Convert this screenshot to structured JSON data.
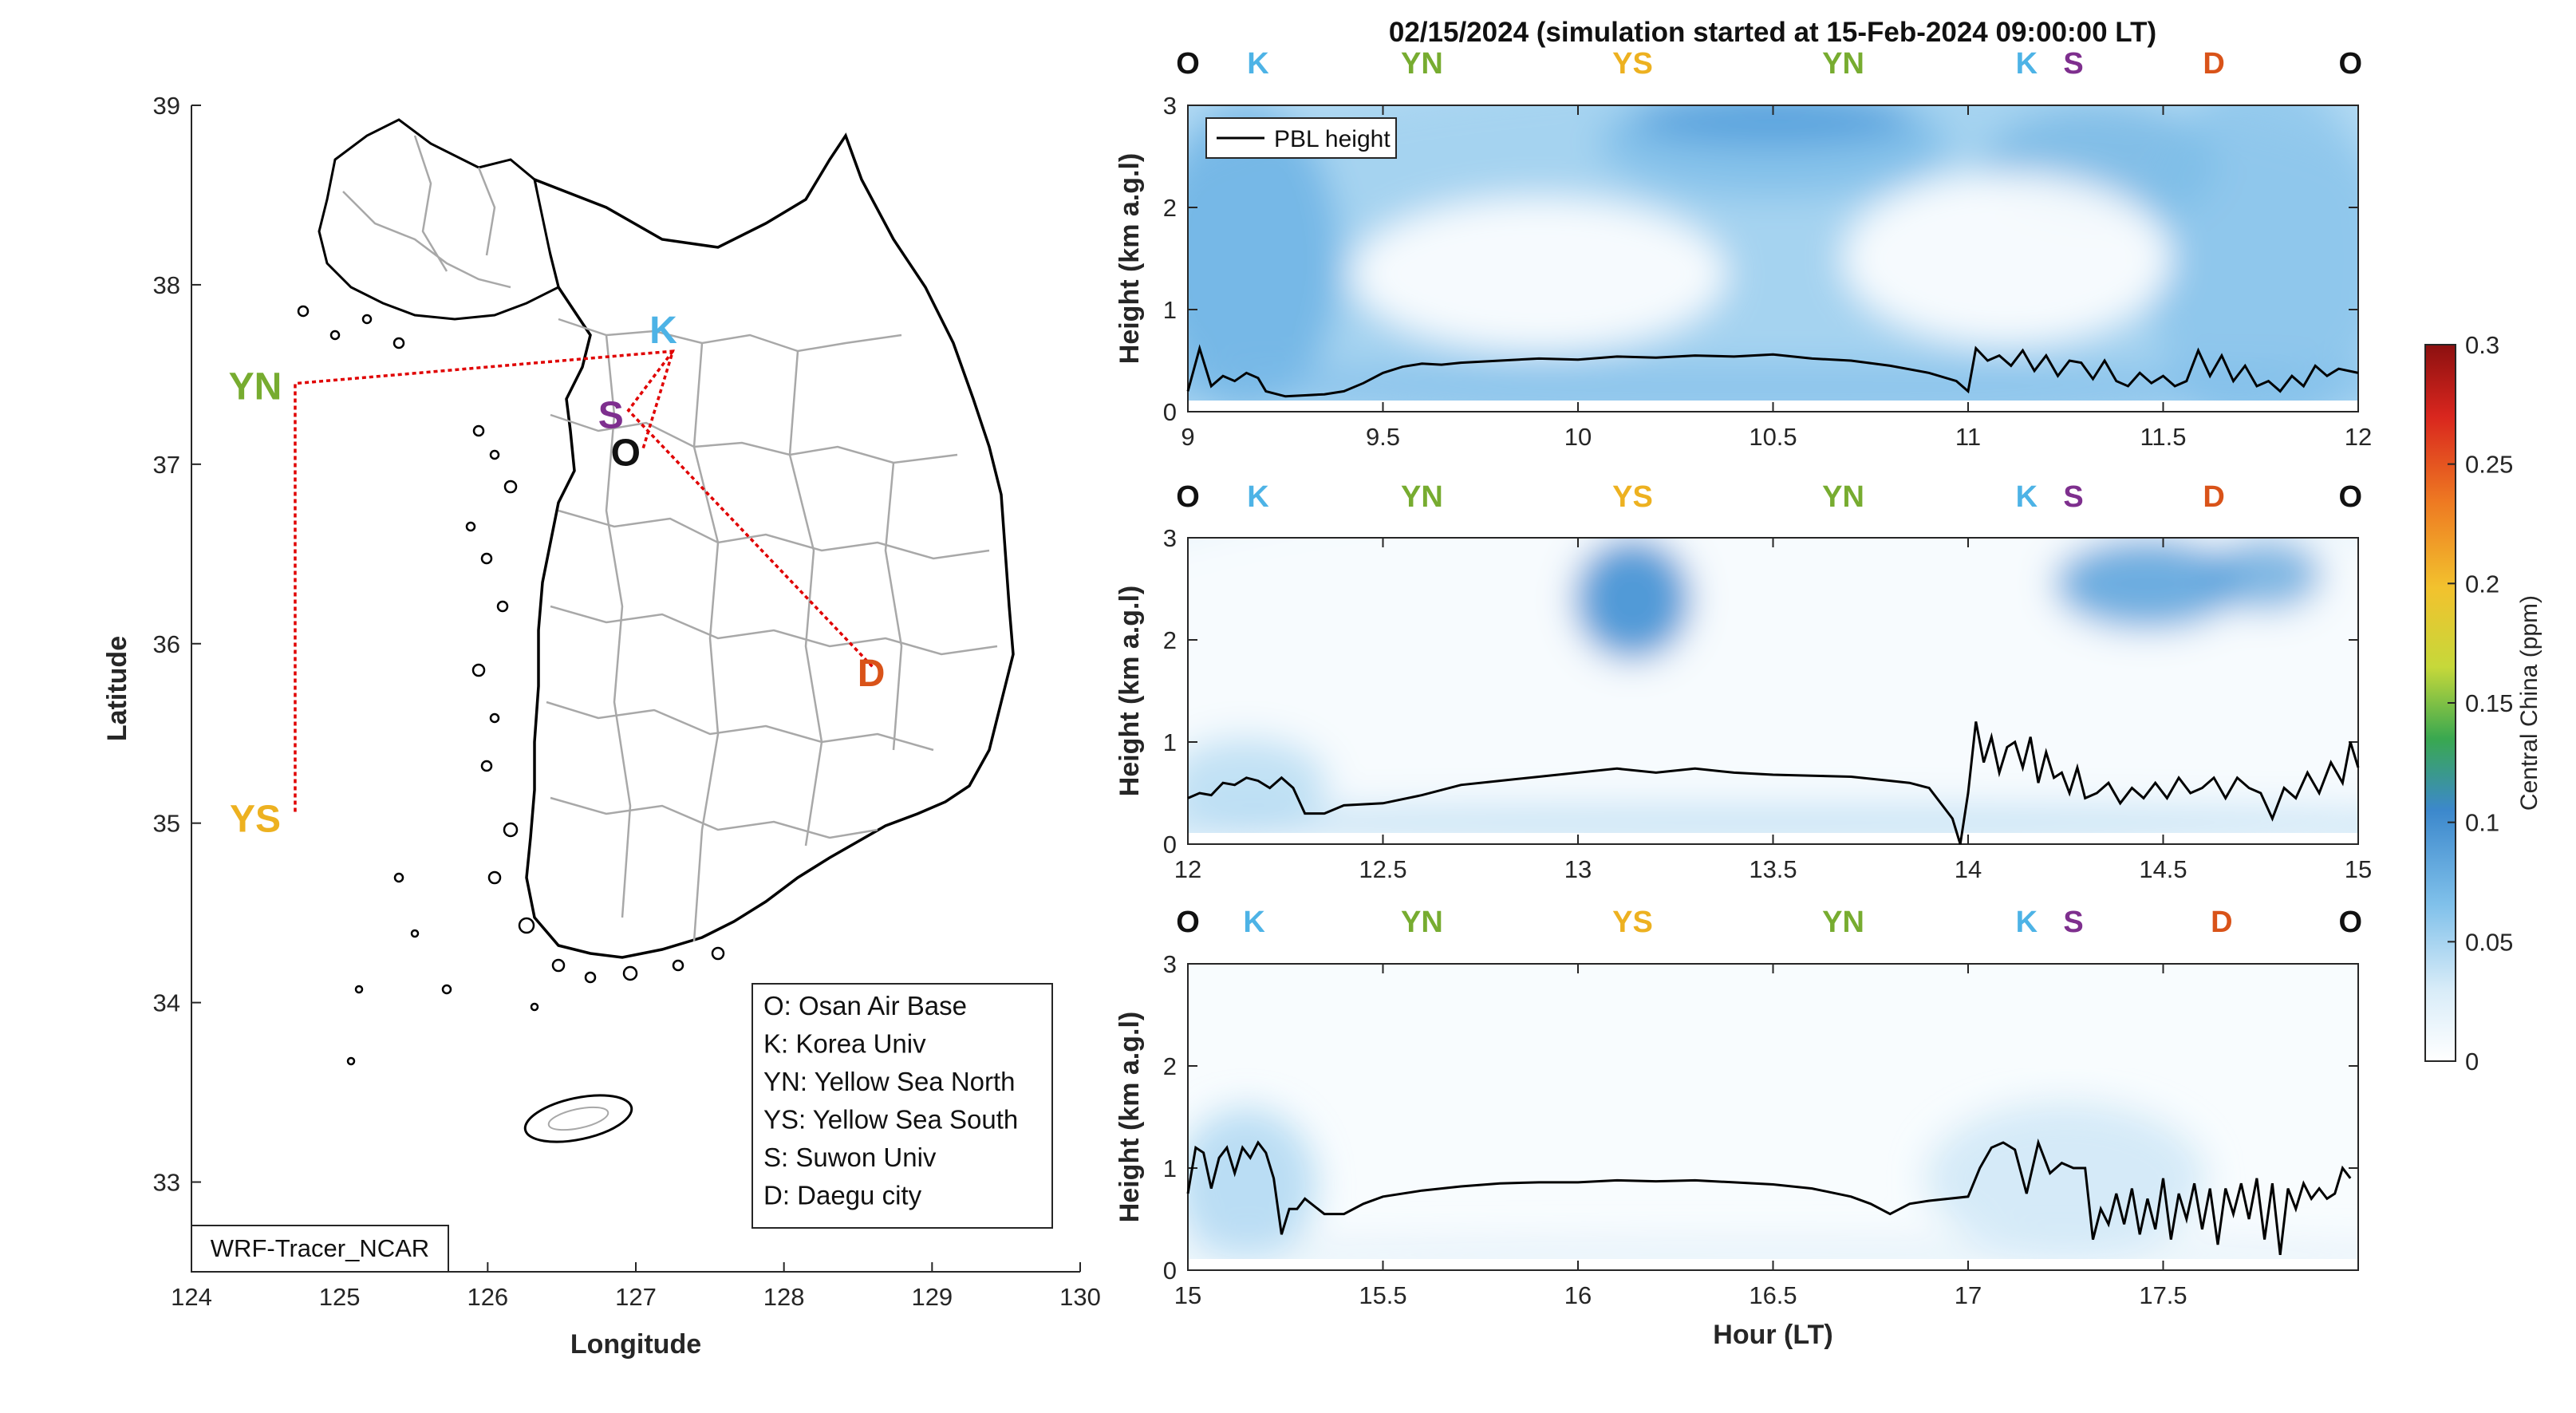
{
  "title": "02/15/2024 (simulation started at 15-Feb-2024 09:00:00 LT)",
  "colors": {
    "O": "#111111",
    "K": "#4db3e6",
    "YN": "#77ac30",
    "YS": "#edb120",
    "S": "#7e2f8e",
    "D": "#d95319",
    "route": "#e00000"
  },
  "map": {
    "xlabel": "Longitude",
    "ylabel": "Latitude",
    "xticks": [
      "124",
      "125",
      "126",
      "127",
      "128",
      "129",
      "130"
    ],
    "yticks": [
      "33",
      "34",
      "35",
      "36",
      "37",
      "38",
      "39"
    ],
    "xlim": [
      124,
      130
    ],
    "ylim": [
      32.5,
      39
    ],
    "model_label": "WRF-Tracer_NCAR",
    "sites": [
      {
        "key": "YN",
        "label": "YN",
        "lon": 124.7,
        "lat": 37.45
      },
      {
        "key": "YS",
        "label": "YS",
        "lon": 124.7,
        "lat": 35.05
      },
      {
        "key": "K",
        "label": "K",
        "lon": 127.25,
        "lat": 37.63
      },
      {
        "key": "S",
        "label": "S",
        "lon": 126.95,
        "lat": 37.3
      },
      {
        "key": "O",
        "label": "O",
        "lon": 127.05,
        "lat": 37.09
      },
      {
        "key": "D",
        "label": "D",
        "lon": 128.6,
        "lat": 35.87
      }
    ],
    "legend": [
      "O: Osan Air Base",
      "K: Korea Univ",
      "YN: Yellow Sea North",
      "YS: Yellow Sea South",
      "S: Suwon Univ",
      "D: Daegu city"
    ]
  },
  "colorbar": {
    "label": "Central China (ppm)",
    "ticks": [
      "0",
      "0.05",
      "0.1",
      "0.15",
      "0.2",
      "0.25",
      "0.3"
    ],
    "range": [
      0,
      0.3
    ]
  },
  "chart_data": [
    {
      "type": "line",
      "panel": "top",
      "xlabel": "",
      "ylabel": "Height (km a.g.l)",
      "xlim": [
        9,
        12
      ],
      "ylim": [
        0,
        3
      ],
      "xticks": [
        "9",
        "9.5",
        "10",
        "10.5",
        "11",
        "11.5",
        "12"
      ],
      "yticks": [
        "0",
        "1",
        "2",
        "3"
      ],
      "legend": "PBL height",
      "site_markers": [
        {
          "key": "O",
          "label": "O",
          "x": 9.0
        },
        {
          "key": "K",
          "label": "K",
          "x": 9.18
        },
        {
          "key": "YN",
          "label": "YN",
          "x": 9.6
        },
        {
          "key": "YS",
          "label": "YS",
          "x": 10.14
        },
        {
          "key": "YN",
          "label": "YN",
          "x": 10.68
        },
        {
          "key": "K",
          "label": "K",
          "x": 11.15
        },
        {
          "key": "S",
          "label": "S",
          "x": 11.27
        },
        {
          "key": "D",
          "label": "D",
          "x": 11.63
        },
        {
          "key": "O",
          "label": "O",
          "x": 11.98
        }
      ],
      "series": [
        {
          "name": "PBL height",
          "x": [
            9.0,
            9.03,
            9.06,
            9.09,
            9.12,
            9.15,
            9.18,
            9.2,
            9.25,
            9.3,
            9.35,
            9.4,
            9.45,
            9.5,
            9.55,
            9.6,
            9.65,
            9.7,
            9.8,
            9.9,
            10.0,
            10.1,
            10.2,
            10.3,
            10.4,
            10.5,
            10.6,
            10.7,
            10.8,
            10.9,
            10.97,
            11.0,
            11.02,
            11.05,
            11.08,
            11.11,
            11.14,
            11.17,
            11.2,
            11.23,
            11.26,
            11.29,
            11.32,
            11.35,
            11.38,
            11.41,
            11.44,
            11.47,
            11.5,
            11.53,
            11.56,
            11.59,
            11.62,
            11.65,
            11.68,
            11.71,
            11.74,
            11.77,
            11.8,
            11.83,
            11.86,
            11.89,
            11.92,
            11.95,
            12.0
          ],
          "y": [
            0.2,
            0.62,
            0.25,
            0.35,
            0.3,
            0.38,
            0.33,
            0.2,
            0.15,
            0.16,
            0.17,
            0.2,
            0.28,
            0.38,
            0.44,
            0.47,
            0.46,
            0.48,
            0.5,
            0.52,
            0.51,
            0.54,
            0.53,
            0.55,
            0.54,
            0.56,
            0.52,
            0.5,
            0.45,
            0.38,
            0.3,
            0.2,
            0.62,
            0.5,
            0.55,
            0.45,
            0.6,
            0.4,
            0.55,
            0.35,
            0.5,
            0.48,
            0.32,
            0.5,
            0.3,
            0.25,
            0.38,
            0.28,
            0.35,
            0.25,
            0.3,
            0.6,
            0.35,
            0.55,
            0.3,
            0.45,
            0.25,
            0.3,
            0.2,
            0.35,
            0.25,
            0.45,
            0.35,
            0.42,
            0.38
          ]
        }
      ]
    },
    {
      "type": "line",
      "panel": "middle",
      "xlabel": "",
      "ylabel": "Height (km a.g.l)",
      "xlim": [
        12,
        15
      ],
      "ylim": [
        0,
        3
      ],
      "xticks": [
        "12",
        "12.5",
        "13",
        "13.5",
        "14",
        "14.5",
        "15"
      ],
      "yticks": [
        "0",
        "1",
        "2",
        "3"
      ],
      "legend": "",
      "site_markers": [
        {
          "key": "O",
          "label": "O",
          "x": 12.0
        },
        {
          "key": "K",
          "label": "K",
          "x": 12.18
        },
        {
          "key": "YN",
          "label": "YN",
          "x": 12.6
        },
        {
          "key": "YS",
          "label": "YS",
          "x": 13.14
        },
        {
          "key": "YN",
          "label": "YN",
          "x": 13.68
        },
        {
          "key": "K",
          "label": "K",
          "x": 14.15
        },
        {
          "key": "S",
          "label": "S",
          "x": 14.27
        },
        {
          "key": "D",
          "label": "D",
          "x": 14.63
        },
        {
          "key": "O",
          "label": "O",
          "x": 14.98
        }
      ],
      "series": [
        {
          "name": "PBL height",
          "x": [
            12.0,
            12.03,
            12.06,
            12.09,
            12.12,
            12.15,
            12.18,
            12.21,
            12.24,
            12.27,
            12.3,
            12.35,
            12.4,
            12.5,
            12.6,
            12.7,
            12.8,
            12.9,
            13.0,
            13.1,
            13.2,
            13.3,
            13.4,
            13.5,
            13.6,
            13.7,
            13.8,
            13.85,
            13.9,
            13.93,
            13.96,
            13.98,
            14.0,
            14.02,
            14.04,
            14.06,
            14.08,
            14.1,
            14.12,
            14.14,
            14.16,
            14.18,
            14.2,
            14.22,
            14.24,
            14.26,
            14.28,
            14.3,
            14.33,
            14.36,
            14.39,
            14.42,
            14.45,
            14.48,
            14.51,
            14.54,
            14.57,
            14.6,
            14.63,
            14.66,
            14.69,
            14.72,
            14.75,
            14.78,
            14.81,
            14.84,
            14.87,
            14.9,
            14.93,
            14.96,
            14.98,
            15.0
          ],
          "y": [
            0.45,
            0.5,
            0.48,
            0.6,
            0.58,
            0.65,
            0.62,
            0.55,
            0.65,
            0.55,
            0.3,
            0.3,
            0.38,
            0.4,
            0.48,
            0.58,
            0.62,
            0.66,
            0.7,
            0.74,
            0.7,
            0.74,
            0.7,
            0.68,
            0.67,
            0.66,
            0.62,
            0.6,
            0.55,
            0.4,
            0.25,
            0.0,
            0.5,
            1.2,
            0.8,
            1.05,
            0.7,
            0.95,
            1.0,
            0.75,
            1.05,
            0.6,
            0.9,
            0.65,
            0.7,
            0.5,
            0.75,
            0.45,
            0.5,
            0.6,
            0.4,
            0.55,
            0.45,
            0.6,
            0.45,
            0.65,
            0.5,
            0.55,
            0.65,
            0.45,
            0.65,
            0.55,
            0.5,
            0.25,
            0.55,
            0.45,
            0.7,
            0.5,
            0.8,
            0.6,
            1.0,
            0.75
          ]
        }
      ]
    },
    {
      "type": "line",
      "panel": "bottom",
      "xlabel": "Hour (LT)",
      "ylabel": "Height (km a.g.l)",
      "xlim": [
        15,
        18
      ],
      "ylim": [
        0,
        3
      ],
      "xticks": [
        "15",
        "15.5",
        "16",
        "16.5",
        "17",
        "17.5"
      ],
      "yticks": [
        "0",
        "1",
        "2",
        "3"
      ],
      "legend": "",
      "site_markers": [
        {
          "key": "O",
          "label": "O",
          "x": 15.0
        },
        {
          "key": "K",
          "label": "K",
          "x": 15.17
        },
        {
          "key": "YN",
          "label": "YN",
          "x": 15.6
        },
        {
          "key": "YS",
          "label": "YS",
          "x": 16.14
        },
        {
          "key": "YN",
          "label": "YN",
          "x": 16.68
        },
        {
          "key": "K",
          "label": "K",
          "x": 17.15
        },
        {
          "key": "S",
          "label": "S",
          "x": 17.27
        },
        {
          "key": "D",
          "label": "D",
          "x": 17.65
        },
        {
          "key": "O",
          "label": "O",
          "x": 17.98
        }
      ],
      "series": [
        {
          "name": "PBL height",
          "x": [
            15.0,
            15.02,
            15.04,
            15.06,
            15.08,
            15.1,
            15.12,
            15.14,
            15.16,
            15.18,
            15.2,
            15.22,
            15.24,
            15.26,
            15.28,
            15.3,
            15.35,
            15.4,
            15.45,
            15.5,
            15.6,
            15.7,
            15.8,
            15.9,
            16.0,
            16.1,
            16.2,
            16.3,
            16.4,
            16.5,
            16.6,
            16.7,
            16.75,
            16.8,
            16.85,
            16.9,
            17.0,
            17.03,
            17.06,
            17.09,
            17.12,
            17.15,
            17.18,
            17.21,
            17.24,
            17.27,
            17.3,
            17.32,
            17.34,
            17.36,
            17.38,
            17.4,
            17.42,
            17.44,
            17.46,
            17.48,
            17.5,
            17.52,
            17.54,
            17.56,
            17.58,
            17.6,
            17.62,
            17.64,
            17.66,
            17.68,
            17.7,
            17.72,
            17.74,
            17.76,
            17.78,
            17.8,
            17.82,
            17.84,
            17.86,
            17.88,
            17.9,
            17.92,
            17.94,
            17.96,
            17.98
          ],
          "y": [
            0.75,
            1.2,
            1.15,
            0.8,
            1.1,
            1.2,
            0.95,
            1.2,
            1.1,
            1.25,
            1.15,
            0.9,
            0.35,
            0.6,
            0.6,
            0.7,
            0.55,
            0.55,
            0.65,
            0.72,
            0.78,
            0.82,
            0.85,
            0.86,
            0.86,
            0.88,
            0.87,
            0.88,
            0.86,
            0.84,
            0.8,
            0.72,
            0.65,
            0.55,
            0.65,
            0.68,
            0.72,
            1.0,
            1.2,
            1.25,
            1.18,
            0.75,
            1.25,
            0.95,
            1.05,
            1.0,
            1.0,
            0.3,
            0.6,
            0.45,
            0.75,
            0.45,
            0.8,
            0.35,
            0.7,
            0.4,
            0.9,
            0.3,
            0.75,
            0.5,
            0.85,
            0.4,
            0.8,
            0.25,
            0.8,
            0.55,
            0.85,
            0.5,
            0.9,
            0.3,
            0.85,
            0.15,
            0.8,
            0.6,
            0.85,
            0.7,
            0.8,
            0.7,
            0.75,
            1.0,
            0.9
          ]
        }
      ]
    }
  ]
}
